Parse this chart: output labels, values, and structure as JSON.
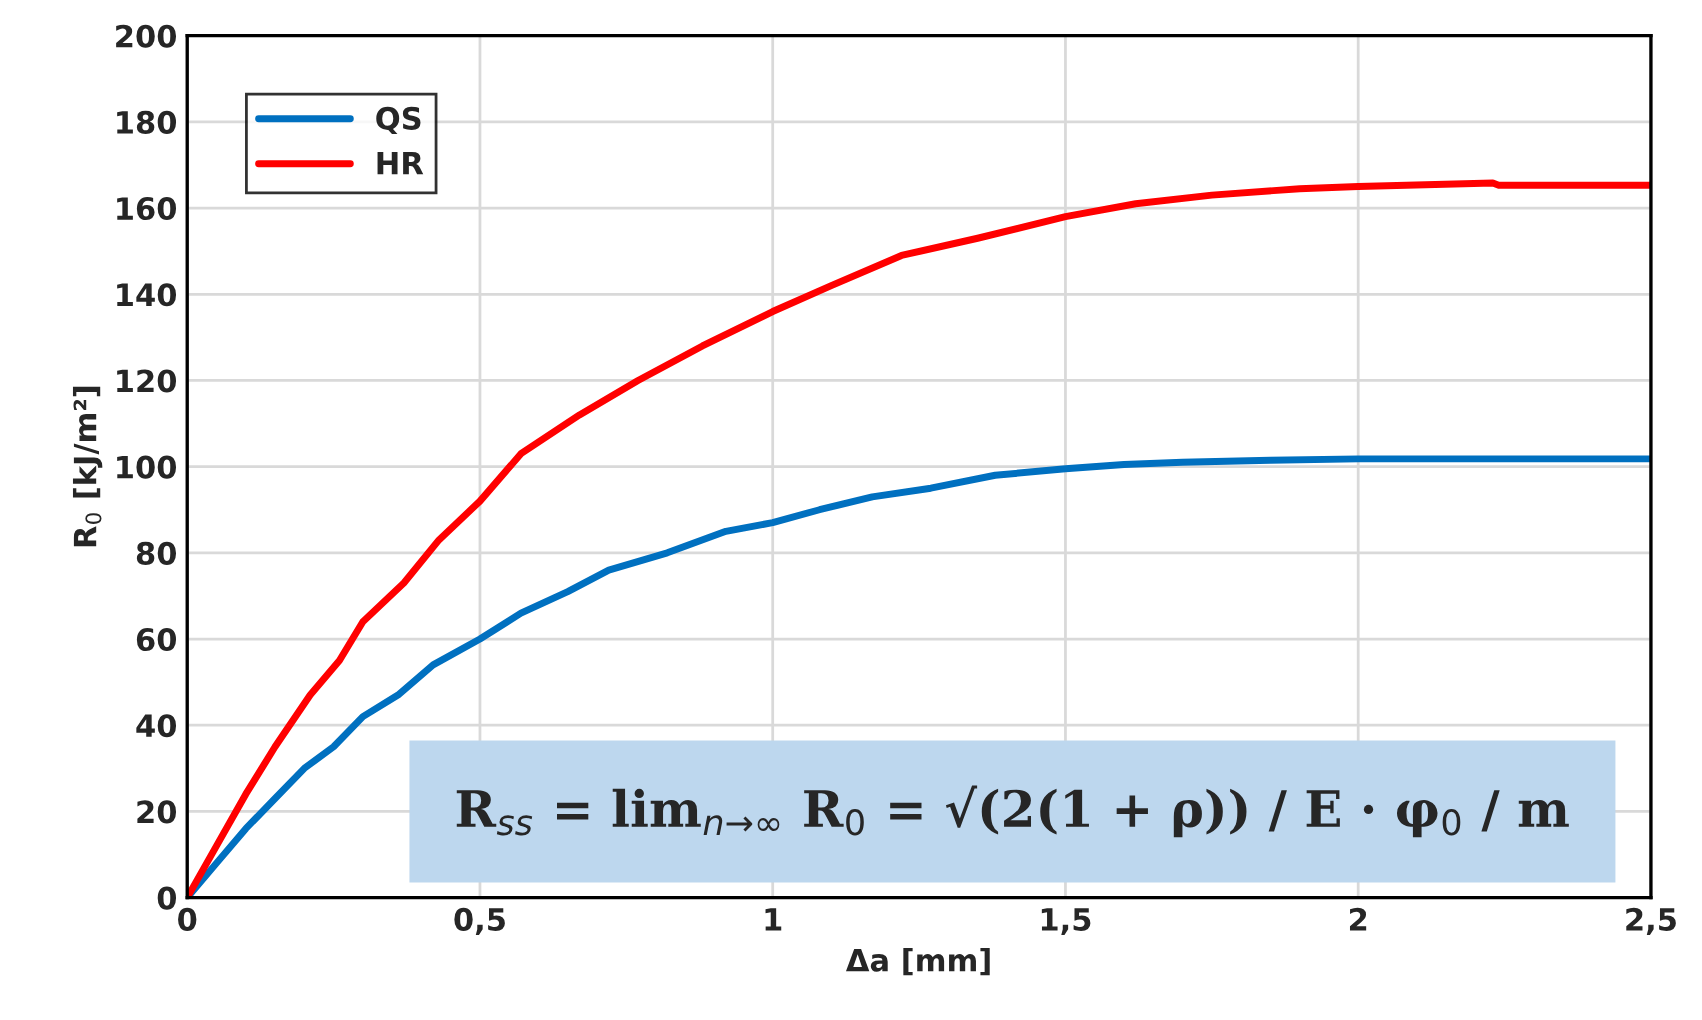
{
  "chart_data": {
    "type": "line",
    "xlabel": "Δa [mm]",
    "ylabel": "R$_{0}$ [kJ/m²]",
    "xlim": [
      0,
      2.5
    ],
    "ylim": [
      0,
      200
    ],
    "xticks": [
      0,
      {
        "value": 0.5,
        "label": "0,5"
      },
      1,
      {
        "value": 1.5,
        "label": "1,5"
      },
      2,
      {
        "value": 2.5,
        "label": "2,5"
      }
    ],
    "yticks": [
      0,
      20,
      40,
      60,
      80,
      100,
      120,
      140,
      160,
      180,
      200
    ],
    "grid": true,
    "legend": "top left",
    "marker": "none",
    "line_style": "solid",
    "series": [
      {
        "name": "QS",
        "color": "#0070c0",
        "x": [
          0,
          0.05,
          0.1,
          0.15,
          0.2,
          0.25,
          0.3,
          0.36,
          0.42,
          0.5,
          0.57,
          0.65,
          0.72,
          0.82,
          0.92,
          1.0,
          1.08,
          1.17,
          1.27,
          1.38,
          1.5,
          1.6,
          1.7,
          1.85,
          2.0,
          2.2,
          2.5
        ],
        "values": [
          0,
          8,
          16,
          23,
          30,
          35,
          42,
          47,
          54,
          60,
          66,
          71,
          76,
          80,
          85,
          87,
          90,
          93,
          95,
          98,
          99.5,
          100.5,
          101,
          101.5,
          101.8,
          101.8,
          101.8
        ]
      },
      {
        "name": "HR",
        "color": "#ff0000",
        "x": [
          0,
          0.05,
          0.1,
          0.15,
          0.21,
          0.26,
          0.3,
          0.37,
          0.43,
          0.5,
          0.57,
          0.67,
          0.77,
          0.88,
          1.0,
          1.1,
          1.22,
          1.35,
          1.5,
          1.62,
          1.75,
          1.9,
          2.0,
          2.23,
          2.24,
          2.5
        ],
        "values": [
          0,
          12,
          24,
          35,
          47,
          55,
          64,
          73,
          83,
          92,
          103,
          112,
          120,
          128,
          136,
          142,
          149,
          153,
          158,
          161,
          163,
          164.5,
          165,
          165.8,
          165.3,
          165.3
        ]
      }
    ],
    "annotations": [
      "R$_{ss}$ = lim$_{n→∞}$ R$_{0}$ = √(2(1 + ρ)) / E · φ$_{0}$ / m"
    ]
  }
}
